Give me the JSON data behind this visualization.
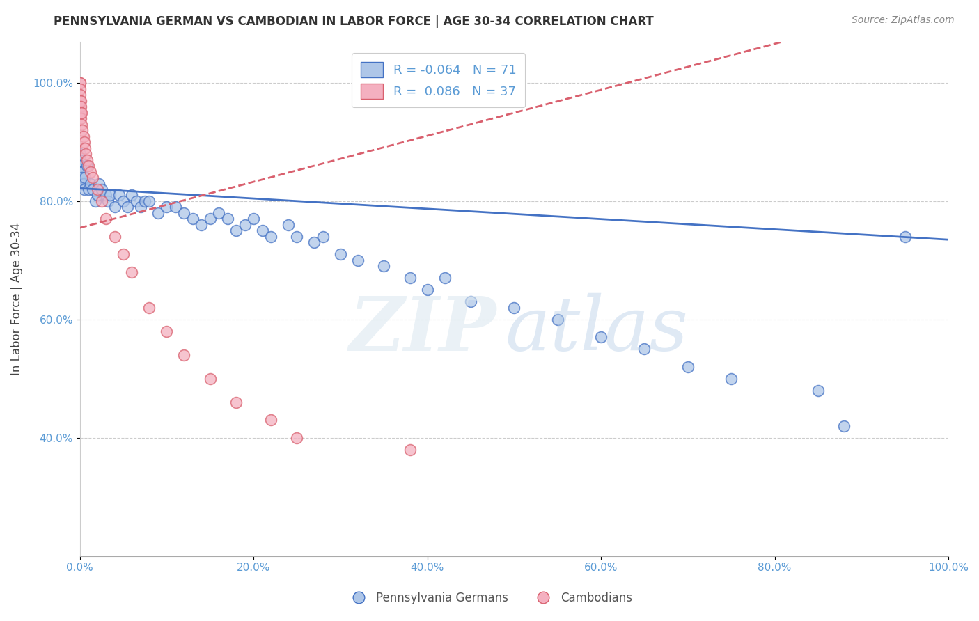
{
  "title": "PENNSYLVANIA GERMAN VS CAMBODIAN IN LABOR FORCE | AGE 30-34 CORRELATION CHART",
  "source": "Source: ZipAtlas.com",
  "xlabel": "",
  "ylabel": "In Labor Force | Age 30-34",
  "blue_label": "Pennsylvania Germans",
  "pink_label": "Cambodians",
  "blue_R": -0.064,
  "blue_N": 71,
  "pink_R": 0.086,
  "pink_N": 37,
  "blue_color": "#aec6e8",
  "pink_color": "#f4b0c0",
  "blue_line_color": "#4472c4",
  "pink_line_color": "#d9606e",
  "blue_points_x": [
    0.0,
    0.0,
    0.0,
    0.0,
    0.0,
    0.0,
    0.0,
    0.001,
    0.001,
    0.001,
    0.002,
    0.002,
    0.003,
    0.003,
    0.004,
    0.005,
    0.006,
    0.008,
    0.01,
    0.012,
    0.015,
    0.018,
    0.02,
    0.022,
    0.025,
    0.03,
    0.032,
    0.035,
    0.04,
    0.045,
    0.05,
    0.055,
    0.06,
    0.065,
    0.07,
    0.075,
    0.08,
    0.09,
    0.1,
    0.11,
    0.12,
    0.13,
    0.14,
    0.15,
    0.16,
    0.17,
    0.18,
    0.19,
    0.2,
    0.21,
    0.22,
    0.24,
    0.25,
    0.27,
    0.28,
    0.3,
    0.32,
    0.35,
    0.38,
    0.4,
    0.42,
    0.45,
    0.5,
    0.55,
    0.6,
    0.65,
    0.7,
    0.75,
    0.85,
    0.88,
    0.95
  ],
  "blue_points_y": [
    0.88,
    0.87,
    0.86,
    0.85,
    0.84,
    0.84,
    0.83,
    0.86,
    0.85,
    0.83,
    0.84,
    0.83,
    0.85,
    0.84,
    0.83,
    0.82,
    0.84,
    0.86,
    0.82,
    0.83,
    0.82,
    0.8,
    0.81,
    0.83,
    0.82,
    0.81,
    0.8,
    0.81,
    0.79,
    0.81,
    0.8,
    0.79,
    0.81,
    0.8,
    0.79,
    0.8,
    0.8,
    0.78,
    0.79,
    0.79,
    0.78,
    0.77,
    0.76,
    0.77,
    0.78,
    0.77,
    0.75,
    0.76,
    0.77,
    0.75,
    0.74,
    0.76,
    0.74,
    0.73,
    0.74,
    0.71,
    0.7,
    0.69,
    0.67,
    0.65,
    0.67,
    0.63,
    0.62,
    0.6,
    0.57,
    0.55,
    0.52,
    0.5,
    0.48,
    0.42,
    0.74
  ],
  "pink_points_x": [
    0.0,
    0.0,
    0.0,
    0.0,
    0.0,
    0.0,
    0.0,
    0.0,
    0.001,
    0.001,
    0.001,
    0.001,
    0.002,
    0.002,
    0.003,
    0.004,
    0.005,
    0.006,
    0.007,
    0.008,
    0.01,
    0.012,
    0.015,
    0.02,
    0.025,
    0.03,
    0.04,
    0.05,
    0.06,
    0.08,
    0.1,
    0.12,
    0.15,
    0.18,
    0.22,
    0.25,
    0.38
  ],
  "pink_points_y": [
    1.0,
    1.0,
    0.99,
    0.98,
    0.97,
    0.96,
    0.95,
    0.94,
    0.97,
    0.96,
    0.95,
    0.94,
    0.95,
    0.93,
    0.92,
    0.91,
    0.9,
    0.89,
    0.88,
    0.87,
    0.86,
    0.85,
    0.84,
    0.82,
    0.8,
    0.77,
    0.74,
    0.71,
    0.68,
    0.62,
    0.58,
    0.54,
    0.5,
    0.46,
    0.43,
    0.4,
    0.38
  ],
  "xlim": [
    0.0,
    1.0
  ],
  "ylim": [
    0.2,
    1.07
  ],
  "xtick_labels": [
    "0.0%",
    "20.0%",
    "40.0%",
    "60.0%",
    "80.0%",
    "100.0%"
  ],
  "ytick_labels": [
    "40.0%",
    "60.0%",
    "80.0%",
    "100.0%"
  ],
  "ytick_vals": [
    0.4,
    0.6,
    0.8,
    1.0
  ],
  "xtick_vals": [
    0.0,
    0.2,
    0.4,
    0.6,
    0.8,
    1.0
  ],
  "blue_trend_start": 0.822,
  "blue_trend_end": 0.735,
  "pink_trend_x0": 0.0,
  "pink_trend_y0": 0.755,
  "pink_trend_x1": 0.45,
  "pink_trend_y1": 0.93
}
